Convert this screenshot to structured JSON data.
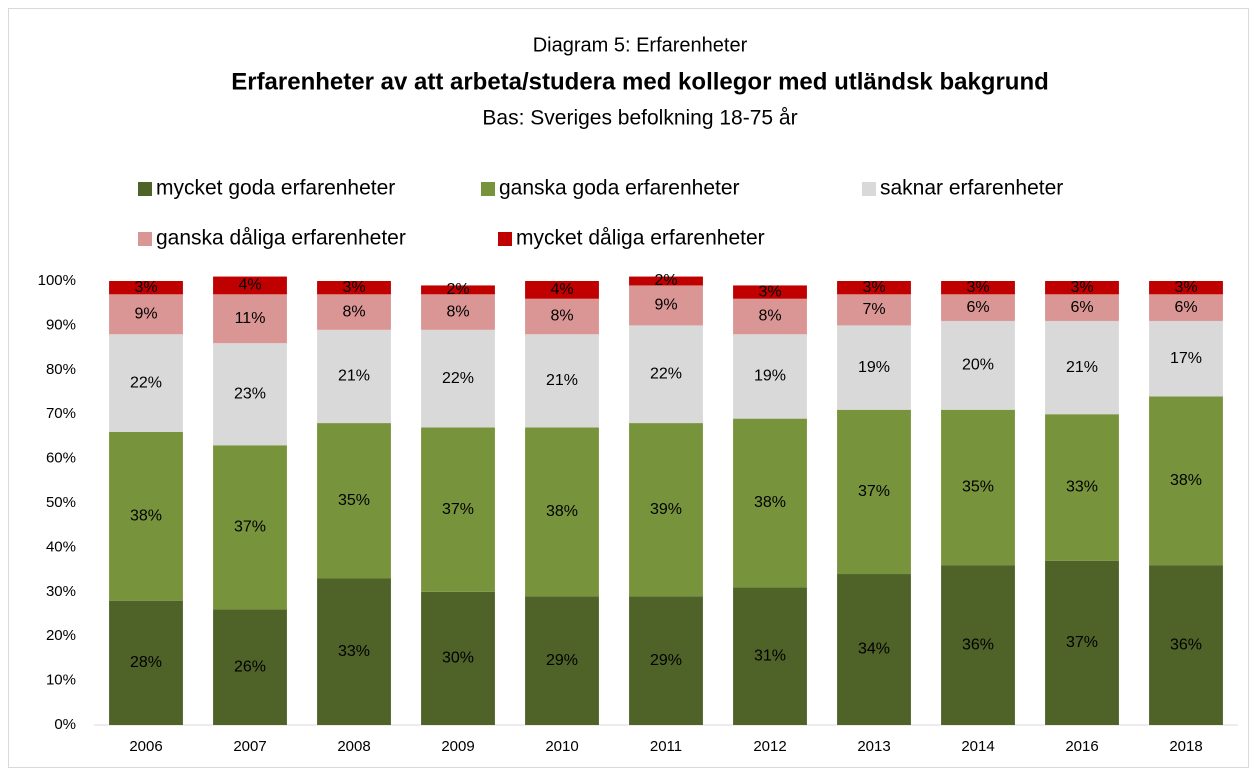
{
  "chart_data": {
    "type": "stacked_bar",
    "supertitle": "Diagram 5: Erfarenheter",
    "title": "Erfarenheter av att arbeta/studera med kollegor med utländsk bakgrund",
    "subtitle": "Bas: Sveriges befolkning 18-75 år",
    "categories": [
      "2006",
      "2007",
      "2008",
      "2009",
      "2010",
      "2011",
      "2012",
      "2013",
      "2014",
      "2016",
      "2018"
    ],
    "series": [
      {
        "name": "mycket goda erfarenheter",
        "color": "#4f6228",
        "values": [
          28,
          26,
          33,
          30,
          29,
          29,
          31,
          34,
          36,
          37,
          36
        ],
        "value_labels": [
          "28%",
          "26%",
          "33%",
          "30%",
          "29%",
          "29%",
          "31%",
          "34%",
          "36%",
          "37%",
          "36%"
        ]
      },
      {
        "name": "ganska goda erfarenheter",
        "color": "#77933c",
        "values": [
          38,
          37,
          35,
          37,
          38,
          39,
          38,
          37,
          35,
          33,
          38
        ],
        "value_labels": [
          "38%",
          "37%",
          "35%",
          "37%",
          "38%",
          "39%",
          "38%",
          "37%",
          "35%",
          "33%",
          "38%"
        ]
      },
      {
        "name": "saknar erfarenheter",
        "color": "#d9d9d9",
        "values": [
          22,
          23,
          21,
          22,
          21,
          22,
          19,
          19,
          20,
          21,
          17
        ],
        "value_labels": [
          "22%",
          "23%",
          "21%",
          "22%",
          "21%",
          "22%",
          "19%",
          "19%",
          "20%",
          "21%",
          "17%"
        ]
      },
      {
        "name": "ganska dåliga erfarenheter",
        "color": "#da9694",
        "values": [
          9,
          11,
          8,
          8,
          8,
          9,
          8,
          7,
          6,
          6,
          6
        ],
        "value_labels": [
          "9%",
          "11%",
          "8%",
          "8%",
          "8%",
          "9%",
          "8%",
          "7%",
          "6%",
          "6%",
          "6%"
        ]
      },
      {
        "name": "mycket dåliga erfarenheter",
        "color": "#c00000",
        "values": [
          3,
          4,
          3,
          2,
          4,
          2,
          3,
          3,
          3,
          3,
          3
        ],
        "value_labels": [
          "3%",
          "4%",
          "3%",
          "2%",
          "4%",
          "2%",
          "3%",
          "3%",
          "3%",
          "3%",
          "3%"
        ]
      }
    ],
    "ylim": [
      0,
      100
    ],
    "yticks": [
      {
        "value": 0,
        "label": "0%"
      },
      {
        "value": 10,
        "label": "10%"
      },
      {
        "value": 20,
        "label": "20%"
      },
      {
        "value": 30,
        "label": "30%"
      },
      {
        "value": 40,
        "label": "40%"
      },
      {
        "value": 50,
        "label": "50%"
      },
      {
        "value": 60,
        "label": "60%"
      },
      {
        "value": 70,
        "label": "70%"
      },
      {
        "value": 80,
        "label": "80%"
      },
      {
        "value": 90,
        "label": "90%"
      },
      {
        "value": 100,
        "label": "100%"
      }
    ],
    "grid": false,
    "legend": "top"
  }
}
